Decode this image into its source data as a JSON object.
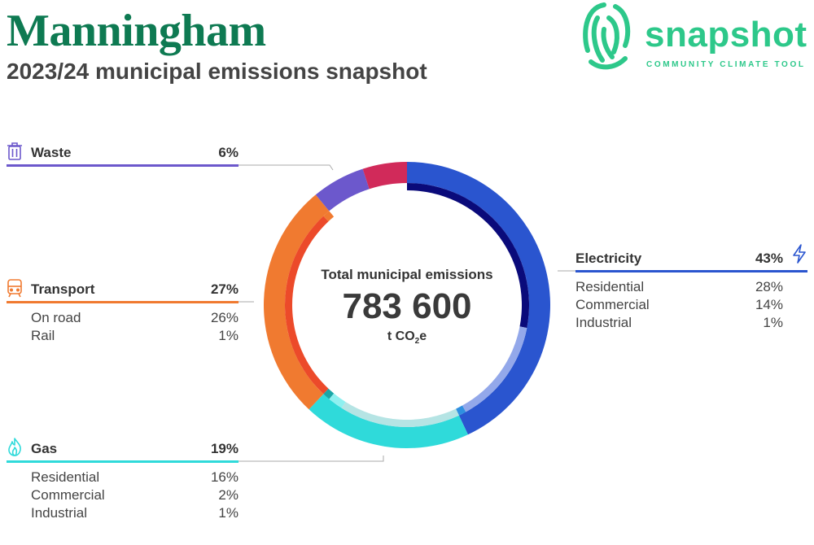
{
  "header": {
    "title": "Manningham",
    "subtitle": "2023/24 municipal emissions snapshot"
  },
  "logo": {
    "word": "snapshot",
    "tagline": "COMMUNITY CLIMATE TOOL",
    "icon": "fingerprint-icon",
    "color": "#2dc88a"
  },
  "center": {
    "caption": "Total municipal emissions",
    "total": "783 600",
    "unit_prefix": "t CO",
    "unit_sub": "2",
    "unit_suffix": "e"
  },
  "chart_data": {
    "type": "pie",
    "title": "2023/24 municipal emissions snapshot",
    "total": 783600,
    "sectors": [
      {
        "key": "electricity",
        "name": "Electricity",
        "value": 43,
        "color": "#2a55cf",
        "icon": "lightning-icon",
        "sub": [
          {
            "name": "Residential",
            "value": 28,
            "color": "#0a0a7a"
          },
          {
            "name": "Commercial",
            "value": 14,
            "color": "#93a8ea"
          },
          {
            "name": "Industrial",
            "value": 1,
            "color": "#2f8fe0"
          }
        ]
      },
      {
        "key": "gas",
        "name": "Gas",
        "value": 19,
        "color": "#2fdada",
        "icon": "flame-icon",
        "sub": [
          {
            "name": "Residential",
            "value": 16,
            "color": "#b5e4e4"
          },
          {
            "name": "Commercial",
            "value": 2,
            "color": "#8ff0f0"
          },
          {
            "name": "Industrial",
            "value": 1,
            "color": "#1aa6a6"
          }
        ]
      },
      {
        "key": "transport",
        "name": "Transport",
        "value": 27,
        "color": "#f07a30",
        "icon": "train-icon",
        "sub": [
          {
            "name": "On road",
            "value": 26,
            "color": "#ec4a2a"
          },
          {
            "name": "Rail",
            "value": 1,
            "color": "#f07a30"
          }
        ]
      },
      {
        "key": "waste",
        "name": "Waste",
        "value": 6,
        "color": "#6c58cc",
        "icon": "trash-icon",
        "sub": []
      },
      {
        "key": "other",
        "name": "",
        "value": 5,
        "color": "#d12a5a",
        "icon": "",
        "sub": []
      }
    ]
  }
}
